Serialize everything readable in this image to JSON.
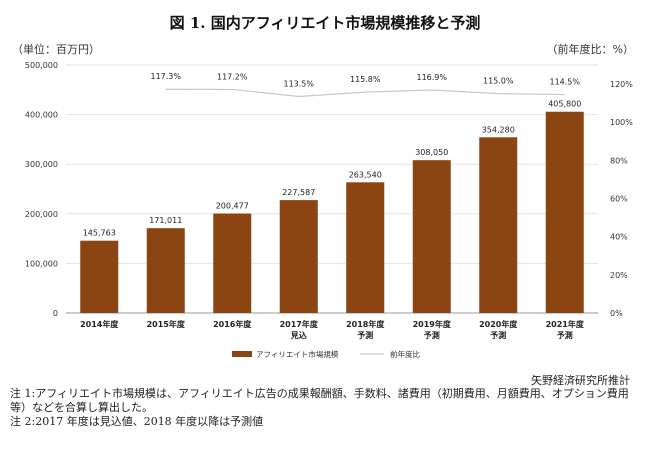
{
  "title": "図 1. 国内アフィリエイト市場規模推移と予測",
  "unit_left": "（単位：百万円）",
  "unit_right": "（前年度比：%）",
  "source": "矢野経済研究所推計",
  "notes": [
    "注 1:アフィリエイト市場規模は、アフィリエイト広告の成果報酬額、手数料、諸費用（初期費用、月額費用、オプション費用等）などを合算し算出した。",
    "注 2:2017 年度は見込値、2018 年度以降は予測値"
  ],
  "chart_data": {
    "type": "bar",
    "categories": [
      [
        "2014年度"
      ],
      [
        "2015年度"
      ],
      [
        "2016年度"
      ],
      [
        "2017年度",
        "見込"
      ],
      [
        "2018年度",
        "予測"
      ],
      [
        "2019年度",
        "予測"
      ],
      [
        "2020年度",
        "予測"
      ],
      [
        "2021年度",
        "予測"
      ]
    ],
    "series": [
      {
        "name": "アフィリエイト市場規模",
        "type": "bar",
        "axis": "left",
        "color": "#8b4513",
        "values": [
          145763,
          171011,
          200477,
          227587,
          263540,
          308050,
          354280,
          405800
        ],
        "labels": [
          "145,763",
          "171,011",
          "200,477",
          "227,587",
          "263,540",
          "308,050",
          "354,280",
          "405,800"
        ]
      },
      {
        "name": "前年度比",
        "type": "line",
        "axis": "right",
        "color": "#c8c8c8",
        "values": [
          null,
          117.3,
          117.2,
          113.5,
          115.8,
          116.9,
          115.0,
          114.5
        ],
        "labels": [
          "",
          "117.3%",
          "117.2%",
          "113.5%",
          "115.8%",
          "116.9%",
          "115.0%",
          "114.5%"
        ]
      }
    ],
    "y_left": {
      "min": 0,
      "max": 500000,
      "ticks": [
        "0",
        "100,000",
        "200,000",
        "300,000",
        "400,000",
        "500,000"
      ]
    },
    "y_right": {
      "min": 0,
      "max": 130,
      "ticks": [
        "0%",
        "20%",
        "40%",
        "60%",
        "80%",
        "100%",
        "120%"
      ]
    },
    "legend_position": "bottom",
    "grid": true
  }
}
